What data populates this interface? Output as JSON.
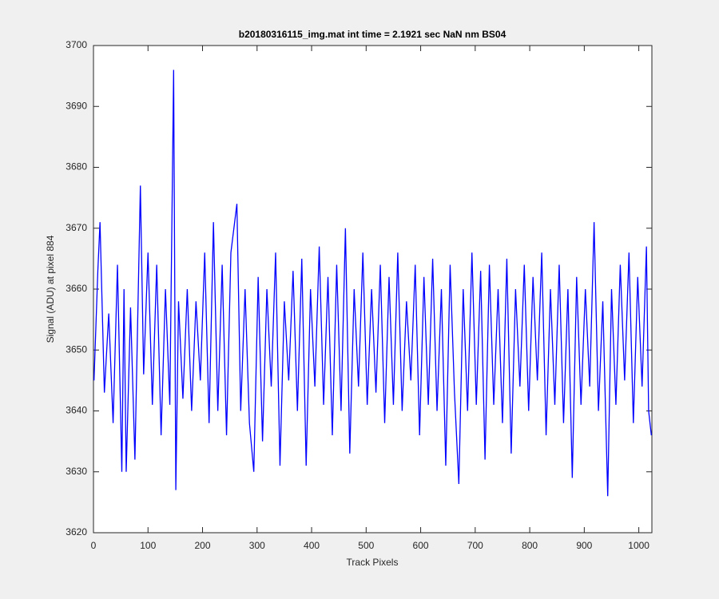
{
  "chart_data": {
    "type": "line",
    "title": "b20180316115_img.mat int time = 2.1921 sec  NaN nm BS04",
    "x_label": "Track Pixels",
    "y_label": "Signal (ADU) at pixel 884",
    "xlim": [
      0,
      1024
    ],
    "ylim": [
      3620,
      3700
    ],
    "xticks": [
      0,
      100,
      200,
      300,
      400,
      500,
      600,
      700,
      800,
      900,
      1000
    ],
    "yticks": [
      3620,
      3630,
      3640,
      3650,
      3660,
      3670,
      3680,
      3690,
      3700
    ],
    "grid": false,
    "series": [
      {
        "color": "#0000ff",
        "x": [
          1,
          8,
          12,
          20,
          28,
          36,
          44,
          52,
          56,
          60,
          68,
          76,
          86,
          92,
          100,
          108,
          116,
          124,
          132,
          140,
          147,
          151,
          156,
          164,
          172,
          180,
          188,
          196,
          204,
          212,
          220,
          228,
          236,
          244,
          252,
          263,
          270,
          278,
          286,
          294,
          302,
          310,
          318,
          326,
          334,
          342,
          350,
          358,
          366,
          374,
          382,
          390,
          398,
          406,
          414,
          422,
          430,
          438,
          446,
          454,
          462,
          470,
          478,
          486,
          494,
          502,
          510,
          518,
          526,
          534,
          542,
          550,
          558,
          566,
          574,
          582,
          590,
          598,
          606,
          614,
          622,
          630,
          638,
          646,
          654,
          662,
          670,
          678,
          686,
          694,
          702,
          710,
          718,
          726,
          734,
          742,
          750,
          758,
          766,
          774,
          782,
          790,
          798,
          806,
          814,
          822,
          830,
          838,
          846,
          854,
          862,
          870,
          878,
          886,
          894,
          902,
          910,
          918,
          926,
          934,
          943,
          950,
          958,
          966,
          974,
          982,
          990,
          998,
          1006,
          1014,
          1018,
          1023
        ],
        "values": [
          3645,
          3663,
          3671,
          3643,
          3656,
          3638,
          3664,
          3630,
          3660,
          3630,
          3657,
          3632,
          3677,
          3646,
          3666,
          3641,
          3664,
          3636,
          3660,
          3641,
          3696,
          3627,
          3658,
          3642,
          3660,
          3640,
          3658,
          3645,
          3666,
          3638,
          3671,
          3640,
          3664,
          3636,
          3666,
          3674,
          3640,
          3660,
          3638,
          3630,
          3662,
          3635,
          3660,
          3644,
          3666,
          3631,
          3658,
          3645,
          3663,
          3640,
          3665,
          3631,
          3660,
          3644,
          3667,
          3641,
          3662,
          3636,
          3664,
          3640,
          3670,
          3633,
          3660,
          3644,
          3666,
          3641,
          3660,
          3643,
          3664,
          3638,
          3662,
          3641,
          3666,
          3640,
          3658,
          3645,
          3664,
          3636,
          3662,
          3641,
          3665,
          3640,
          3660,
          3631,
          3664,
          3643,
          3628,
          3660,
          3640,
          3666,
          3641,
          3663,
          3632,
          3664,
          3641,
          3660,
          3638,
          3665,
          3633,
          3660,
          3644,
          3664,
          3640,
          3662,
          3645,
          3666,
          3636,
          3660,
          3641,
          3664,
          3638,
          3660,
          3629,
          3662,
          3641,
          3660,
          3644,
          3671,
          3640,
          3658,
          3626,
          3660,
          3641,
          3664,
          3645,
          3666,
          3638,
          3662,
          3644,
          3667,
          3640,
          3636
        ]
      }
    ]
  }
}
